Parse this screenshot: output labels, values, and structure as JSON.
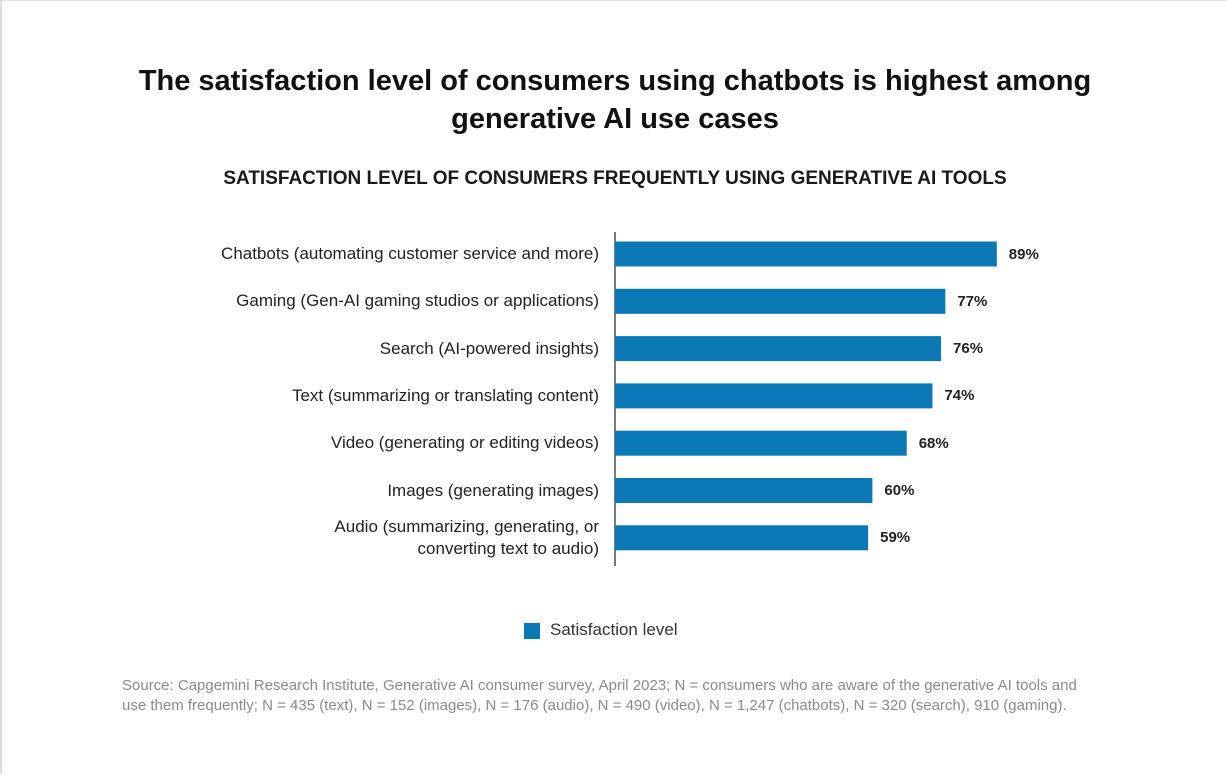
{
  "chart_data": {
    "type": "bar",
    "orientation": "horizontal",
    "title": "The satisfaction level of consumers using chatbots is highest among\ngenerative AI use cases",
    "subtitle": "SATISFACTION LEVEL OF CONSUMERS FREQUENTLY USING GENERATIVE AI TOOLS",
    "categories": [
      "Chatbots (automating customer service and more)",
      "Gaming (Gen-AI gaming studios or applications)",
      "Search (AI-powered insights)",
      "Text (summarizing or translating content)",
      "Video (generating or editing videos)",
      "Images (generating images)",
      "Audio (summarizing, generating, or\nconverting text to audio)"
    ],
    "series": [
      {
        "name": "Satisfaction level",
        "color": "#0b78b6",
        "values": [
          89,
          77,
          76,
          74,
          68,
          60,
          59
        ],
        "value_labels": [
          "89%",
          "77%",
          "76%",
          "74%",
          "68%",
          "60%",
          "59%"
        ]
      }
    ],
    "xlim": [
      0,
      100
    ],
    "legend": "bottom",
    "source": "Source: Capgemini Research Institute, Generative AI consumer survey, April 2023; N = consumers who are aware of the generative AI tools and use them frequently; N = 435 (text), N = 152 (images), N = 176 (audio), N = 490 (video), N = 1,247 (chatbots), N = 320 (search), 910 (gaming)."
  }
}
